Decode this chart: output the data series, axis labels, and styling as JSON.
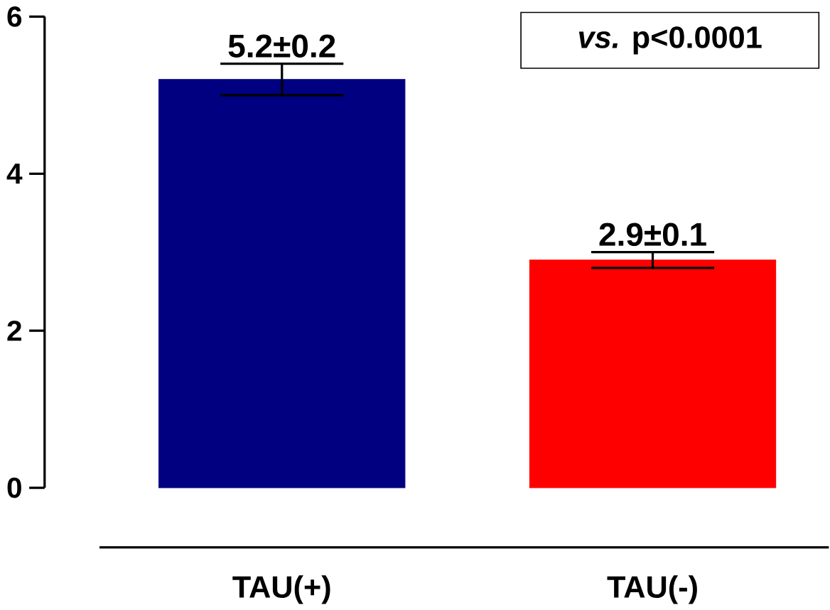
{
  "chart_data": {
    "type": "bar",
    "categories": [
      "TAU(+)",
      "TAU(-)"
    ],
    "values": [
      5.2,
      2.9
    ],
    "errors": [
      0.2,
      0.1
    ],
    "value_labels": [
      "5.2±0.2",
      "2.9±0.1"
    ],
    "colors": [
      "#000080",
      "#ff0000"
    ],
    "ylim": [
      0,
      6
    ],
    "yticks": [
      0,
      2,
      4,
      6
    ],
    "annotations": [
      "*vs.* p<0.0001"
    ],
    "grid": false
  }
}
